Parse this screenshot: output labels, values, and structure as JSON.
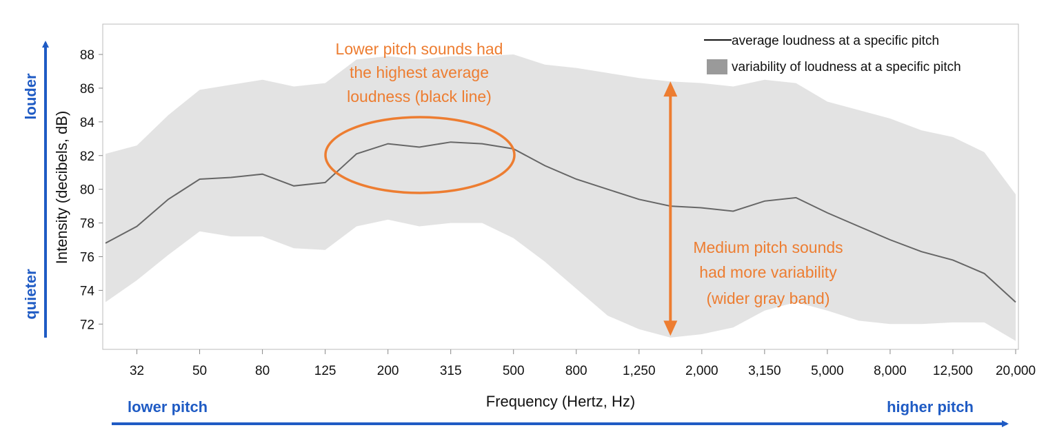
{
  "chart_data": {
    "type": "line",
    "title": "",
    "xlabel": "Frequency (Hertz, Hz)",
    "ylabel": "Intensity  (decibels, dB)",
    "x_scale": "log",
    "grid": false,
    "legend_position": "top-right",
    "categories": [
      "25",
      "32",
      "40",
      "50",
      "63",
      "80",
      "100",
      "125",
      "160",
      "200",
      "250",
      "315",
      "400",
      "500",
      "630",
      "800",
      "1,000",
      "1,250",
      "1,600",
      "2,000",
      "2,500",
      "3,150",
      "4,000",
      "5,000",
      "6,300",
      "8,000",
      "10,000",
      "12,500",
      "16,000",
      "20,000"
    ],
    "x_tick_labels": [
      "32",
      "50",
      "80",
      "125",
      "200",
      "315",
      "500",
      "800",
      "1,250",
      "2,000",
      "3,150",
      "5,000",
      "8,000",
      "12,500",
      "20,000"
    ],
    "y_ticks": [
      72,
      74,
      76,
      78,
      80,
      82,
      84,
      86,
      88
    ],
    "ylim": [
      70.5,
      89.8
    ],
    "series": [
      {
        "name": "average loudness at a specific pitch",
        "type": "line",
        "color": "#666666",
        "values": [
          76.8,
          77.8,
          79.4,
          80.6,
          80.7,
          80.9,
          80.2,
          80.4,
          82.1,
          82.7,
          82.5,
          82.8,
          82.7,
          82.4,
          81.4,
          80.6,
          80.0,
          79.4,
          79.0,
          78.9,
          78.7,
          79.3,
          79.5,
          78.6,
          77.8,
          77.0,
          76.3,
          75.8,
          75.0,
          73.3
        ]
      },
      {
        "name": "variability of loudness at a specific pitch",
        "type": "area",
        "color": "#E3E3E3",
        "upper": [
          82.1,
          82.6,
          84.4,
          85.9,
          86.2,
          86.5,
          86.1,
          86.3,
          87.7,
          87.9,
          87.7,
          87.9,
          87.9,
          88.0,
          87.4,
          87.2,
          86.9,
          86.6,
          86.4,
          86.3,
          86.1,
          86.5,
          86.3,
          85.2,
          84.7,
          84.2,
          83.5,
          83.1,
          82.2,
          79.7
        ],
        "lower": [
          73.3,
          74.6,
          76.1,
          77.5,
          77.2,
          77.2,
          76.5,
          76.4,
          77.8,
          78.2,
          77.8,
          78.0,
          78.0,
          77.1,
          75.7,
          74.1,
          72.5,
          71.7,
          71.2,
          71.4,
          71.8,
          72.8,
          73.3,
          72.8,
          72.2,
          72.0,
          72.0,
          72.1,
          72.1,
          71.0
        ]
      }
    ],
    "annotations": {
      "top_note": [
        "Lower pitch sounds had",
        "the highest average",
        "loudness (black line)"
      ],
      "side_note": [
        "Medium pitch sounds",
        "had more variability",
        "(wider gray band)"
      ],
      "highlight_color": "#ED7D31",
      "side_arrow_range_db": [
        71.3,
        86.4
      ]
    },
    "direction_labels": {
      "y_top": "louder",
      "y_bottom": "quieter",
      "x_left": "lower pitch",
      "x_right": "higher pitch",
      "color": "#1F5BC4"
    }
  }
}
